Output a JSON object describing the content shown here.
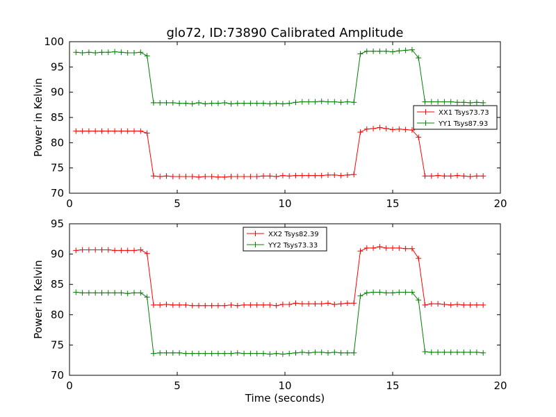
{
  "figure": {
    "title": "glo72, ID:73890 Calibrated Amplitude"
  },
  "colors": {
    "red": "#ff0000",
    "green": "#008000",
    "axes": "#000000"
  },
  "chart_data": [
    {
      "type": "line",
      "ylabel": "Power in Kelvin",
      "xlabel": "",
      "xlim": [
        0,
        20
      ],
      "ylim": [
        70,
        100
      ],
      "xticks": [
        0,
        5,
        10,
        15,
        20
      ],
      "yticks": [
        70,
        75,
        80,
        85,
        90,
        95,
        100
      ],
      "grid": false,
      "legend_position": "right",
      "x": [
        0.3,
        0.6,
        0.9,
        1.2,
        1.5,
        1.8,
        2.1,
        2.4,
        2.7,
        3.0,
        3.3,
        3.6,
        3.9,
        4.2,
        4.5,
        4.8,
        5.1,
        5.4,
        5.7,
        6.0,
        6.3,
        6.6,
        6.9,
        7.2,
        7.5,
        7.8,
        8.1,
        8.4,
        8.7,
        9.0,
        9.3,
        9.6,
        9.9,
        10.2,
        10.5,
        10.8,
        11.1,
        11.4,
        11.7,
        12.0,
        12.3,
        12.6,
        12.9,
        13.2,
        13.5,
        13.8,
        14.1,
        14.4,
        14.7,
        15.0,
        15.3,
        15.6,
        15.9,
        16.2,
        16.5,
        16.8,
        17.1,
        17.4,
        17.7,
        18.0,
        18.3,
        18.6,
        18.9,
        19.2
      ],
      "series": [
        {
          "name": "XX1 Tsys73.73",
          "color": "#ff0000",
          "values": [
            82.3,
            82.3,
            82.3,
            82.3,
            82.3,
            82.3,
            82.3,
            82.3,
            82.3,
            82.3,
            82.3,
            81.9,
            73.4,
            73.3,
            73.4,
            73.3,
            73.3,
            73.3,
            73.3,
            73.2,
            73.3,
            73.3,
            73.2,
            73.2,
            73.3,
            73.3,
            73.3,
            73.3,
            73.3,
            73.4,
            73.4,
            73.3,
            73.5,
            73.4,
            73.5,
            73.5,
            73.5,
            73.5,
            73.5,
            73.6,
            73.6,
            73.5,
            73.6,
            73.7,
            82.1,
            82.7,
            82.8,
            83.0,
            82.8,
            82.6,
            82.7,
            82.6,
            82.5,
            81.1,
            73.4,
            73.4,
            73.5,
            73.4,
            73.4,
            73.5,
            73.4,
            73.3,
            73.4,
            73.4
          ]
        },
        {
          "name": "YY1 Tsys87.93",
          "color": "#008000",
          "values": [
            97.9,
            97.8,
            97.9,
            97.8,
            97.9,
            97.9,
            98.0,
            97.9,
            97.8,
            97.8,
            97.9,
            97.2,
            87.9,
            87.9,
            87.9,
            87.9,
            87.8,
            87.8,
            87.7,
            87.9,
            87.7,
            87.8,
            87.8,
            87.9,
            87.7,
            87.8,
            87.8,
            87.8,
            87.8,
            87.8,
            87.7,
            87.8,
            87.7,
            87.8,
            88.0,
            88.1,
            88.1,
            88.1,
            88.2,
            88.1,
            88.1,
            88.0,
            88.1,
            88.0,
            97.6,
            98.1,
            98.1,
            98.1,
            98.1,
            98.0,
            98.2,
            98.3,
            98.4,
            96.8,
            88.1,
            88.1,
            88.1,
            88.1,
            88.1,
            88.0,
            88.0,
            87.9,
            88.0,
            87.9
          ]
        }
      ]
    },
    {
      "type": "line",
      "ylabel": "Power in Kelvin",
      "xlabel": "Time (seconds)",
      "xlim": [
        0,
        20
      ],
      "ylim": [
        70,
        95
      ],
      "xticks": [
        0,
        5,
        10,
        15,
        20
      ],
      "yticks": [
        70,
        75,
        80,
        85,
        90,
        95
      ],
      "grid": false,
      "legend_position": "upper-center",
      "x": [
        0.3,
        0.6,
        0.9,
        1.2,
        1.5,
        1.8,
        2.1,
        2.4,
        2.7,
        3.0,
        3.3,
        3.6,
        3.9,
        4.2,
        4.5,
        4.8,
        5.1,
        5.4,
        5.7,
        6.0,
        6.3,
        6.6,
        6.9,
        7.2,
        7.5,
        7.8,
        8.1,
        8.4,
        8.7,
        9.0,
        9.3,
        9.6,
        9.9,
        10.2,
        10.5,
        10.8,
        11.1,
        11.4,
        11.7,
        12.0,
        12.3,
        12.6,
        12.9,
        13.2,
        13.5,
        13.8,
        14.1,
        14.4,
        14.7,
        15.0,
        15.3,
        15.6,
        15.9,
        16.2,
        16.5,
        16.8,
        17.1,
        17.4,
        17.7,
        18.0,
        18.3,
        18.6,
        18.9,
        19.2
      ],
      "series": [
        {
          "name": "XX2 Tsys82.39",
          "color": "#ff0000",
          "values": [
            90.6,
            90.7,
            90.7,
            90.7,
            90.7,
            90.7,
            90.6,
            90.6,
            90.6,
            90.6,
            90.7,
            90.1,
            81.6,
            81.6,
            81.7,
            81.6,
            81.6,
            81.6,
            81.5,
            81.5,
            81.5,
            81.5,
            81.5,
            81.5,
            81.6,
            81.5,
            81.6,
            81.6,
            81.6,
            81.6,
            81.6,
            81.5,
            81.7,
            81.7,
            81.9,
            81.8,
            81.8,
            81.8,
            81.8,
            81.9,
            81.7,
            81.8,
            81.9,
            81.9,
            90.5,
            91.0,
            91.0,
            91.2,
            91.0,
            91.0,
            91.0,
            90.9,
            90.9,
            89.3,
            81.6,
            81.8,
            81.8,
            81.7,
            81.6,
            81.7,
            81.6,
            81.6,
            81.6,
            81.6
          ]
        },
        {
          "name": "YY2 Tsys73.33",
          "color": "#008000",
          "values": [
            83.7,
            83.6,
            83.6,
            83.6,
            83.6,
            83.6,
            83.6,
            83.6,
            83.5,
            83.6,
            83.6,
            82.9,
            73.6,
            73.7,
            73.7,
            73.7,
            73.7,
            73.6,
            73.6,
            73.6,
            73.6,
            73.6,
            73.6,
            73.6,
            73.6,
            73.7,
            73.6,
            73.6,
            73.6,
            73.6,
            73.5,
            73.6,
            73.5,
            73.6,
            73.7,
            73.8,
            73.7,
            73.8,
            73.8,
            73.7,
            73.8,
            73.7,
            73.7,
            73.7,
            83.1,
            83.6,
            83.7,
            83.7,
            83.6,
            83.6,
            83.7,
            83.7,
            83.7,
            82.4,
            73.9,
            73.8,
            73.8,
            73.8,
            73.8,
            73.8,
            73.8,
            73.8,
            73.8,
            73.7
          ]
        }
      ]
    }
  ]
}
